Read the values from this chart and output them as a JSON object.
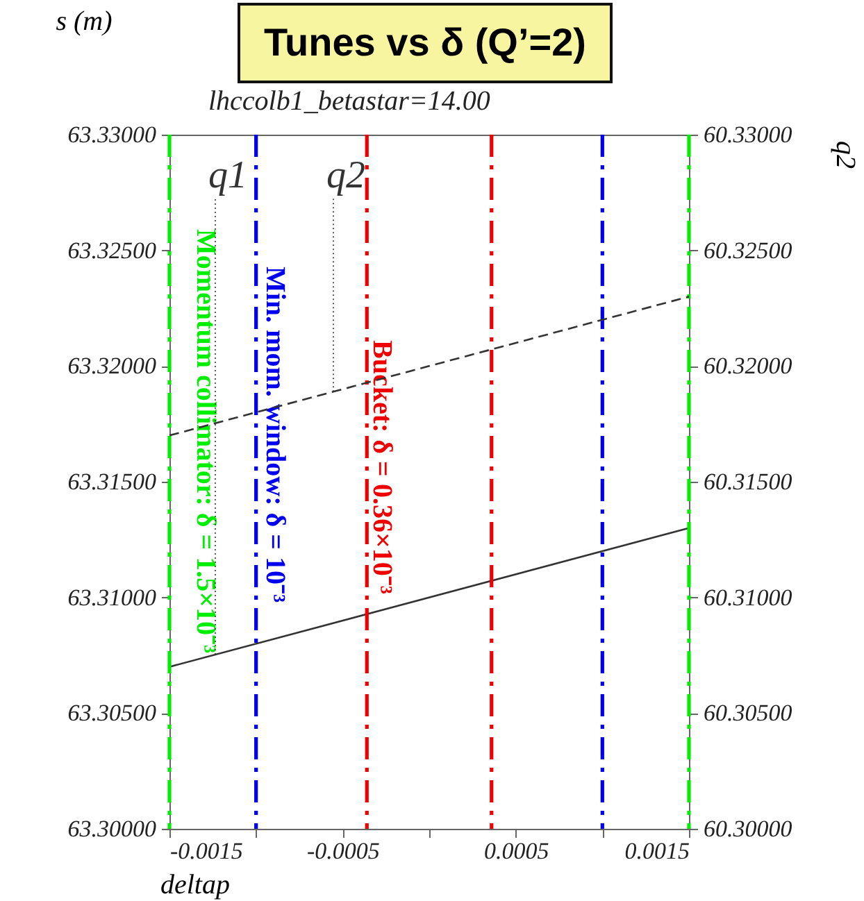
{
  "chart_data": {
    "type": "line",
    "title": "Tunes vs δ (Q’=2)",
    "subtitle": "lhccolb1_betastar=14.00",
    "xlabel": "deltap",
    "ylabel": "s (m)",
    "y2label": "q2",
    "x": [
      -0.0015,
      0.0015
    ],
    "series": [
      {
        "name": "q1",
        "color": "#333333",
        "line_style": "solid",
        "values": [
          63.307,
          63.313
        ]
      },
      {
        "name": "q2",
        "color": "#333333",
        "line_style": "dashed",
        "axis": "y2",
        "values": [
          60.317,
          60.323
        ]
      }
    ],
    "xlim": [
      -0.0015,
      0.0015
    ],
    "xticks": [
      -0.0015,
      {
        "value": -0.001,
        "label": null
      },
      -0.0005,
      {
        "value": 0,
        "label": null
      },
      0.0005,
      {
        "value": 0.001,
        "label": null
      },
      0.0015
    ],
    "ylim": [
      63.3,
      63.33
    ],
    "yticks": [
      {
        "value": 63.3,
        "label": "63.30000"
      },
      {
        "value": 63.305,
        "label": "63.30500"
      },
      {
        "value": 63.31,
        "label": "63.31000"
      },
      {
        "value": 63.315,
        "label": "63.31500"
      },
      {
        "value": 63.32,
        "label": "63.32000"
      },
      {
        "value": 63.325,
        "label": "63.32500"
      },
      {
        "value": 63.33,
        "label": "63.33000"
      }
    ],
    "y2lim": [
      60.3,
      60.33
    ],
    "y2ticks": [
      {
        "value": 60.3,
        "label": "60.30000"
      },
      {
        "value": 60.305,
        "label": "60.30500"
      },
      {
        "value": 60.31,
        "label": "60.31000"
      },
      {
        "value": 60.315,
        "label": "60.31500"
      },
      {
        "value": 60.32,
        "label": "60.32000"
      },
      {
        "value": 60.325,
        "label": "60.32500"
      },
      {
        "value": 60.33,
        "label": "60.33000"
      }
    ],
    "ref_lines": [
      {
        "axis": "x",
        "value": -0.0015,
        "color": "#00ee00",
        "line_style": "dashed"
      },
      {
        "axis": "x",
        "value": 0.0015,
        "color": "#00ee00",
        "line_style": "dashed"
      },
      {
        "axis": "x",
        "value": -0.001,
        "color": "#0000ee",
        "line_style": "dashed"
      },
      {
        "axis": "x",
        "value": 0.001,
        "color": "#0000ee",
        "line_style": "dashed"
      },
      {
        "axis": "x",
        "value": -0.00036,
        "color": "#ee0000",
        "line_style": "dashed"
      },
      {
        "axis": "x",
        "value": 0.00036,
        "color": "#ee0000",
        "line_style": "dashed"
      }
    ],
    "annotations": [
      "Momentum collimator: δ = 1.5×10⁻³",
      "Min. mom. window: δ = 10⁻³",
      "Bucket: δ = 0.36×10⁻³"
    ],
    "grid": false
  }
}
